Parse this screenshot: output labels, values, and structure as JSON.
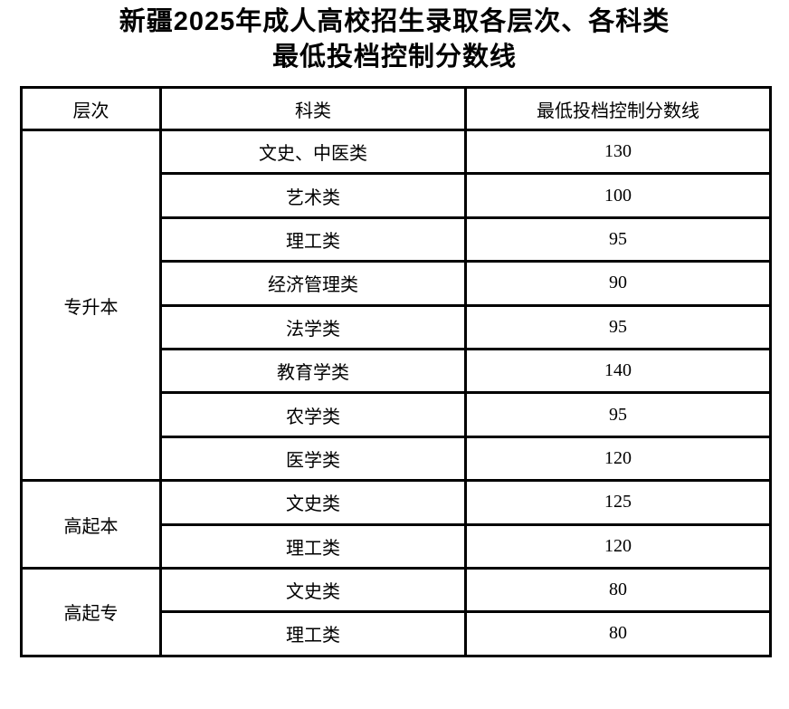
{
  "title": {
    "line1": "新疆2025年成人高校招生录取各层次、各科类",
    "line2": "最低投档控制分数线"
  },
  "table": {
    "headers": [
      "层次",
      "科类",
      "最低投档控制分数线"
    ],
    "groups": [
      {
        "level": "专升本",
        "rows": [
          {
            "category": "文史、中医类",
            "score": "130"
          },
          {
            "category": "艺术类",
            "score": "100"
          },
          {
            "category": "理工类",
            "score": "95"
          },
          {
            "category": "经济管理类",
            "score": "90"
          },
          {
            "category": "法学类",
            "score": "95"
          },
          {
            "category": "教育学类",
            "score": "140"
          },
          {
            "category": "农学类",
            "score": "95"
          },
          {
            "category": "医学类",
            "score": "120"
          }
        ]
      },
      {
        "level": "高起本",
        "rows": [
          {
            "category": "文史类",
            "score": "125"
          },
          {
            "category": "理工类",
            "score": "120"
          }
        ]
      },
      {
        "level": "高起专",
        "rows": [
          {
            "category": "文史类",
            "score": "80"
          },
          {
            "category": "理工类",
            "score": "80"
          }
        ]
      }
    ]
  }
}
